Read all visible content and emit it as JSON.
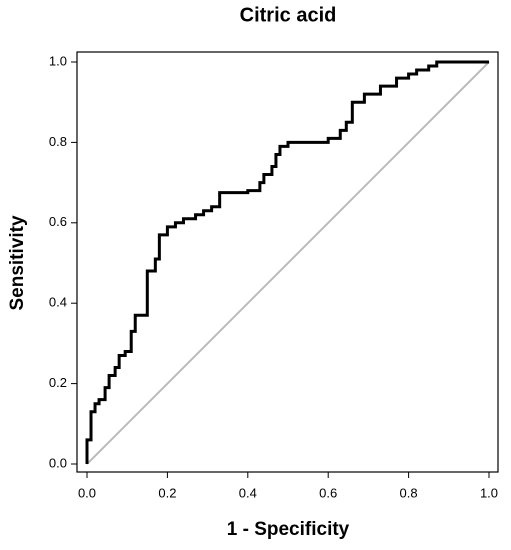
{
  "chart_data": {
    "type": "line",
    "title": "Citric acid",
    "x_label": "1 - Specificity",
    "y_label": "Sensitivity",
    "xlim": [
      0,
      1
    ],
    "ylim": [
      0,
      1
    ],
    "xticks": [
      {
        "value": 0,
        "label": "0.0"
      },
      0.2,
      0.4,
      0.6,
      0.8,
      {
        "value": 1,
        "label": "1.0"
      }
    ],
    "yticks": [
      {
        "value": 0,
        "label": "0.0"
      },
      0.2,
      0.4,
      0.6,
      0.8,
      {
        "value": 1,
        "label": "1.0"
      }
    ],
    "series": [
      {
        "color": "#000000",
        "x": [
          0,
          0,
          0.01,
          0.01,
          0.02,
          0.02,
          0.03,
          0.03,
          0.045,
          0.045,
          0.055,
          0.055,
          0.07,
          0.07,
          0.08,
          0.08,
          0.095,
          0.095,
          0.11,
          0.11,
          0.12,
          0.12,
          0.15,
          0.15,
          0.17,
          0.17,
          0.18,
          0.18,
          0.2,
          0.2,
          0.22,
          0.22,
          0.24,
          0.24,
          0.27,
          0.27,
          0.29,
          0.29,
          0.31,
          0.31,
          0.33,
          0.33,
          0.4,
          0.4,
          0.43,
          0.43,
          0.44,
          0.44,
          0.46,
          0.46,
          0.47,
          0.47,
          0.48,
          0.48,
          0.5,
          0.5,
          0.6,
          0.6,
          0.63,
          0.63,
          0.645,
          0.645,
          0.66,
          0.66,
          0.69,
          0.69,
          0.73,
          0.73,
          0.77,
          0.77,
          0.8,
          0.8,
          0.82,
          0.82,
          0.85,
          0.85,
          0.87,
          0.87,
          1.0
        ],
        "values": [
          0,
          0.06,
          0.06,
          0.13,
          0.13,
          0.15,
          0.15,
          0.16,
          0.16,
          0.19,
          0.19,
          0.22,
          0.22,
          0.24,
          0.24,
          0.27,
          0.27,
          0.28,
          0.28,
          0.33,
          0.33,
          0.37,
          0.37,
          0.48,
          0.48,
          0.51,
          0.51,
          0.57,
          0.57,
          0.59,
          0.59,
          0.6,
          0.6,
          0.61,
          0.61,
          0.62,
          0.62,
          0.63,
          0.63,
          0.64,
          0.64,
          0.675,
          0.675,
          0.68,
          0.68,
          0.7,
          0.7,
          0.72,
          0.72,
          0.74,
          0.74,
          0.77,
          0.77,
          0.79,
          0.79,
          0.8,
          0.8,
          0.81,
          0.81,
          0.83,
          0.83,
          0.85,
          0.85,
          0.9,
          0.9,
          0.92,
          0.92,
          0.94,
          0.94,
          0.96,
          0.96,
          0.97,
          0.97,
          0.98,
          0.98,
          0.99,
          0.99,
          1.0,
          1.0
        ]
      },
      {
        "color": "#bbbbbb",
        "x": [
          0,
          1
        ],
        "values": [
          0,
          1
        ]
      }
    ]
  }
}
